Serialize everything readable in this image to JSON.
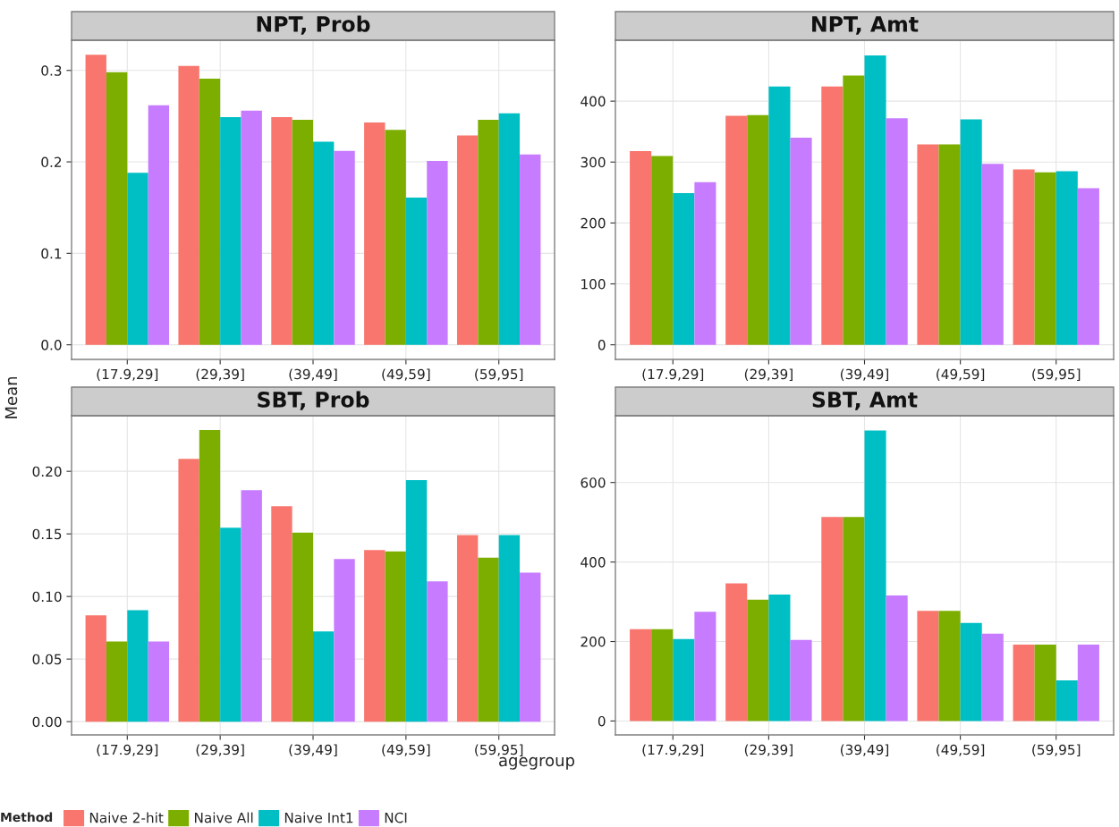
{
  "chart_data": [
    {
      "type": "bar",
      "title": "NPT, Prob",
      "ylabel": "Mean",
      "legend_title": "Method",
      "legend": "bottom",
      "grid": true,
      "categories": [
        "(17.9,29]",
        "(29,39]",
        "(39,49]",
        "(49,59]",
        "(59,95]"
      ],
      "ylim": [
        -0.016,
        0.333
      ],
      "yticks": [
        {
          "value": 0,
          "label": "0.0"
        },
        0.1,
        0.2,
        0.3
      ],
      "series": [
        {
          "name": "Naive 2-hit",
          "color": "#f8766d",
          "values": [
            0.317,
            0.305,
            0.249,
            0.243,
            0.229
          ]
        },
        {
          "name": "Naive All",
          "color": "#7cae00",
          "values": [
            0.298,
            0.291,
            0.246,
            0.235,
            0.246
          ]
        },
        {
          "name": "Naive Int1",
          "color": "#00bfc4",
          "values": [
            0.188,
            0.249,
            0.222,
            0.161,
            0.253
          ]
        },
        {
          "name": "NCI",
          "color": "#c77cff",
          "values": [
            0.262,
            0.256,
            0.212,
            0.201,
            0.208
          ]
        }
      ]
    },
    {
      "type": "bar",
      "title": "NPT, Amt",
      "grid": true,
      "categories": [
        "(17.9,29]",
        "(29,39]",
        "(39,49]",
        "(49,59]",
        "(59,95]"
      ],
      "ylim": [
        -24,
        500
      ],
      "yticks": [
        0,
        100,
        200,
        300,
        400
      ],
      "series": [
        {
          "color": "#f8766d",
          "values": [
            318,
            376,
            424,
            329,
            288
          ]
        },
        {
          "color": "#7cae00",
          "values": [
            310,
            377,
            442,
            329,
            283
          ]
        },
        {
          "color": "#00bfc4",
          "values": [
            249,
            424,
            475,
            370,
            285
          ]
        },
        {
          "color": "#c77cff",
          "values": [
            267,
            340,
            372,
            297,
            257
          ]
        }
      ]
    },
    {
      "type": "bar",
      "title": "SBT, Prob",
      "xlabel": "agegroup",
      "grid": true,
      "categories": [
        "(17.9,29]",
        "(29,39]",
        "(39,49]",
        "(49,59]",
        "(59,95]"
      ],
      "ylim": [
        -0.0106,
        0.2444
      ],
      "yticks": [
        {
          "value": 0,
          "label": "0.00"
        },
        0.05,
        {
          "value": 0.1,
          "label": "0.10"
        },
        0.15,
        {
          "value": 0.2,
          "label": "0.20"
        }
      ],
      "series": [
        {
          "color": "#f8766d",
          "values": [
            0.085,
            0.21,
            0.172,
            0.137,
            0.149
          ]
        },
        {
          "color": "#7cae00",
          "values": [
            0.064,
            0.233,
            0.151,
            0.136,
            0.131
          ]
        },
        {
          "color": "#00bfc4",
          "values": [
            0.089,
            0.155,
            0.072,
            0.193,
            0.149
          ]
        },
        {
          "color": "#c77cff",
          "values": [
            0.064,
            0.185,
            0.13,
            0.112,
            0.119
          ]
        }
      ]
    },
    {
      "type": "bar",
      "title": "SBT, Amt",
      "grid": true,
      "categories": [
        "(17.9,29]",
        "(29,39]",
        "(39,49]",
        "(49,59]",
        "(59,95]"
      ],
      "ylim": [
        -35,
        768
      ],
      "yticks": [
        0,
        200,
        400,
        600
      ],
      "series": [
        {
          "color": "#f8766d",
          "values": [
            231,
            346,
            513,
            277,
            192
          ]
        },
        {
          "color": "#7cae00",
          "values": [
            231,
            305,
            513,
            277,
            192
          ]
        },
        {
          "color": "#00bfc4",
          "values": [
            206,
            318,
            731,
            247,
            102
          ]
        },
        {
          "color": "#c77cff",
          "values": [
            275,
            204,
            316,
            220,
            192
          ]
        }
      ]
    }
  ]
}
